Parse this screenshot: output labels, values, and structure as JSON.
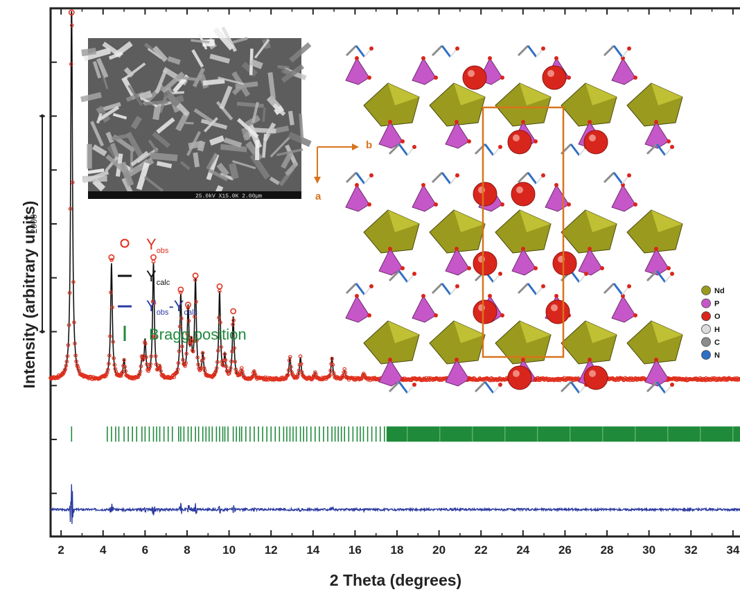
{
  "chart_data": {
    "type": "line",
    "xlabel": "2 Theta (degrees)",
    "ylabel": "Intensity (arbitrary units)",
    "xlim": [
      1.5,
      34.5
    ],
    "ylim": [
      -1400,
      3500
    ],
    "x_ticks": [
      2,
      4,
      6,
      8,
      10,
      12,
      14,
      16,
      18,
      20,
      22,
      24,
      26,
      28,
      30,
      32,
      34
    ],
    "scale_bar": {
      "label": "2000",
      "value": 2000
    },
    "legend": {
      "yobs": {
        "main": "Y",
        "sub": "obs"
      },
      "ycalc": {
        "main": "Y",
        "sub": "calc"
      },
      "diff": {
        "main1": "Y",
        "sub1": "obs",
        "dash": "-",
        "main2": "Y",
        "sub2": "calc"
      },
      "bragg": "Bragg position"
    },
    "baseline": 0,
    "diff_offset": -1150,
    "bragg_row": -450,
    "peaks": [
      {
        "x": 2.5,
        "y": 3580,
        "label": true
      },
      {
        "x": 4.4,
        "y": 1130,
        "label": true
      },
      {
        "x": 5.0,
        "y": 230,
        "label": true
      },
      {
        "x": 5.85,
        "y": 230,
        "label": true
      },
      {
        "x": 6.0,
        "y": 400,
        "label": true
      },
      {
        "x": 6.4,
        "y": 1130,
        "label": true
      },
      {
        "x": 6.7,
        "y": 150,
        "label": true
      },
      {
        "x": 7.7,
        "y": 830,
        "label": true
      },
      {
        "x": 8.05,
        "y": 690,
        "label": true
      },
      {
        "x": 8.2,
        "y": 330,
        "label": true
      },
      {
        "x": 8.4,
        "y": 960,
        "label": true
      },
      {
        "x": 8.75,
        "y": 280,
        "label": true
      },
      {
        "x": 9.55,
        "y": 860,
        "label": true
      },
      {
        "x": 9.8,
        "y": 260,
        "label": true
      },
      {
        "x": 10.2,
        "y": 630,
        "label": true
      },
      {
        "x": 10.6,
        "y": 140,
        "label": true
      },
      {
        "x": 11.2,
        "y": 130,
        "label": true
      },
      {
        "x": 12.9,
        "y": 260,
        "label": true
      },
      {
        "x": 13.4,
        "y": 260,
        "label": true
      },
      {
        "x": 14.1,
        "y": 120,
        "label": true
      },
      {
        "x": 14.9,
        "y": 260,
        "label": true
      },
      {
        "x": 15.5,
        "y": 140,
        "label": true
      },
      {
        "x": 16.4,
        "y": 110,
        "label": true
      },
      {
        "x": 17.7,
        "y": 70,
        "label": true
      },
      {
        "x": 19.4,
        "y": 60,
        "label": true
      },
      {
        "x": 22.0,
        "y": 60,
        "label": true
      }
    ],
    "peak_width": 0.05,
    "background": 60,
    "bragg_positions_sparse": [
      2.5,
      4.2,
      4.4,
      4.6,
      4.75,
      5.0,
      5.2,
      5.4,
      5.6,
      5.85,
      6.0,
      6.2,
      6.4,
      6.55,
      6.7,
      6.9,
      7.1,
      7.3,
      7.6,
      7.7,
      7.85,
      8.05,
      8.2,
      8.4,
      8.55,
      8.75,
      8.9,
      9.05,
      9.2,
      9.4,
      9.55,
      9.7,
      9.8,
      9.95,
      10.2,
      10.35,
      10.5,
      10.6,
      10.8,
      11.0,
      11.2,
      11.4,
      11.6,
      11.8,
      12.0,
      12.2,
      12.4,
      12.6,
      12.75,
      12.9,
      13.05,
      13.2,
      13.4,
      13.55,
      13.7,
      13.9,
      14.1,
      14.3,
      14.5,
      14.7,
      14.9,
      15.05,
      15.2,
      15.35,
      15.5,
      15.7,
      15.9,
      16.1,
      16.25,
      16.4,
      16.6,
      16.8,
      17.0,
      17.2,
      17.4
    ],
    "bragg_dense_range": [
      17.5,
      34.5
    ]
  },
  "inset": {
    "axis_b": "b",
    "axis_a": "a",
    "sem_bar_text": "25.0kV  X15.0K  2.00µm",
    "atoms": [
      {
        "symbol": "Nd",
        "color": "#9a9a1e"
      },
      {
        "symbol": "P",
        "color": "#c657c8"
      },
      {
        "symbol": "O",
        "color": "#d9261c"
      },
      {
        "symbol": "H",
        "color": "#dcdcdc"
      },
      {
        "symbol": "C",
        "color": "#8c8c8c"
      },
      {
        "symbol": "N",
        "color": "#2f6fc4"
      }
    ]
  },
  "colors": {
    "obs": "#e0301e",
    "calc": "#111111",
    "diff": "#2b3aa0",
    "bragg": "#1f8a3a",
    "orange": "#d9731c"
  }
}
